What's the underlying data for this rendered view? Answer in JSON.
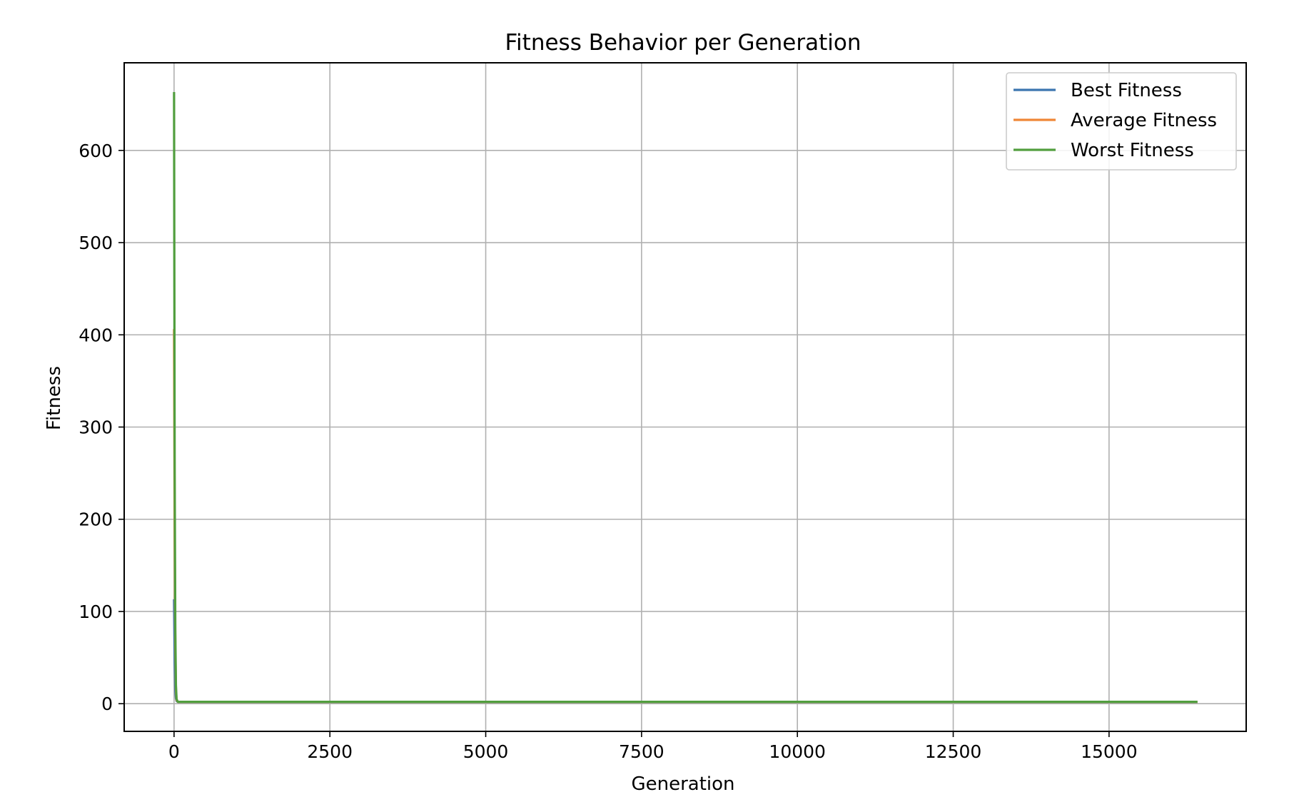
{
  "chart_data": {
    "type": "line",
    "title": "Fitness Behavior per Generation",
    "xlabel": "Generation",
    "ylabel": "Fitness",
    "xlim": [
      -800,
      17200
    ],
    "ylim": [
      -30,
      695
    ],
    "xticks": [
      0,
      2500,
      5000,
      7500,
      10000,
      12500,
      15000
    ],
    "xtick_labels": [
      "0",
      "2500",
      "5000",
      "7500",
      "10000",
      "12500",
      "15000"
    ],
    "yticks": [
      0,
      100,
      200,
      300,
      400,
      500,
      600
    ],
    "ytick_labels": [
      "0",
      "100",
      "200",
      "300",
      "400",
      "500",
      "600"
    ],
    "grid": true,
    "legend_position": "upper right",
    "series": [
      {
        "name": "Best Fitness",
        "color": "#3b75af",
        "x": [
          0,
          5,
          10,
          20,
          30,
          40,
          60,
          100,
          500,
          2000,
          5000,
          8000,
          10000,
          12500,
          15000,
          16400
        ],
        "y": [
          112,
          80,
          45,
          15,
          6,
          3,
          2,
          2,
          2,
          2,
          2,
          2,
          2,
          2,
          2,
          2
        ]
      },
      {
        "name": "Average Fitness",
        "color": "#ef8636",
        "x": [
          0,
          5,
          10,
          20,
          30,
          40,
          60,
          100,
          500,
          2000,
          5000,
          8000,
          10000,
          12500,
          15000,
          16400
        ],
        "y": [
          405,
          300,
          180,
          60,
          15,
          4,
          2,
          2,
          2,
          2,
          2,
          2,
          2,
          2,
          2,
          2
        ]
      },
      {
        "name": "Worst Fitness",
        "color": "#519e3e",
        "x": [
          0,
          5,
          10,
          20,
          30,
          40,
          60,
          100,
          500,
          2000,
          5000,
          8000,
          10000,
          12500,
          15000,
          16400
        ],
        "y": [
          662,
          450,
          250,
          80,
          20,
          5,
          2,
          2,
          2,
          2,
          2,
          2,
          2,
          2,
          2,
          2
        ]
      }
    ]
  }
}
